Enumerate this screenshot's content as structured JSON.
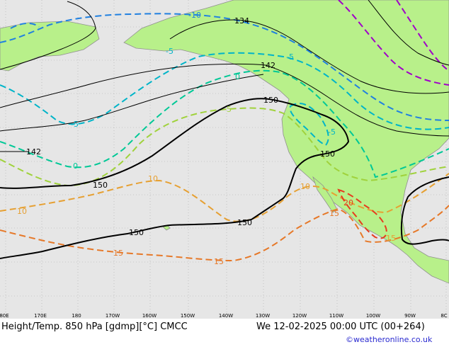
{
  "footer": {
    "title": "Height/Temp. 850 hPa [gdmp][°C] CMCC",
    "time": "We 12-02-2025 00:00 UTC (00+264)",
    "credit": "©weatheronline.co.uk"
  },
  "colors": {
    "ocean": "#e6e6e6",
    "land": "#b8f08a",
    "coast": "#909090",
    "grid": "#aaaaaa",
    "height_line": "#000000",
    "temp_cold": "#a000c8",
    "temp_m10": "#2080e0",
    "temp_m5": "#00b4c8",
    "temp_0": "#00c896",
    "temp_5": "#a0d23c",
    "temp_10": "#e6a032",
    "temp_15": "#e67828",
    "temp_20": "#e63c1e"
  },
  "longitude_ticks": [
    "80E",
    "170E",
    "180",
    "170W",
    "160W",
    "150W",
    "140W",
    "130W",
    "120W",
    "110W",
    "100W",
    "90W",
    "8C"
  ],
  "height_labels": [
    {
      "value": "134"
    },
    {
      "value": "142"
    },
    {
      "value": "142"
    },
    {
      "value": "150"
    },
    {
      "value": "150"
    },
    {
      "value": "150"
    },
    {
      "value": "150"
    },
    {
      "value": "150"
    }
  ],
  "temp_labels": [
    {
      "value": "-10"
    },
    {
      "value": "-5"
    },
    {
      "value": "-5"
    },
    {
      "value": "-5"
    },
    {
      "value": "0"
    },
    {
      "value": "0"
    },
    {
      "value": "-5"
    },
    {
      "value": "5"
    },
    {
      "value": "10"
    },
    {
      "value": "10"
    },
    {
      "value": "10"
    },
    {
      "value": "15"
    },
    {
      "value": "15"
    },
    {
      "value": "15"
    },
    {
      "value": "20"
    },
    {
      "value": "15"
    }
  ]
}
